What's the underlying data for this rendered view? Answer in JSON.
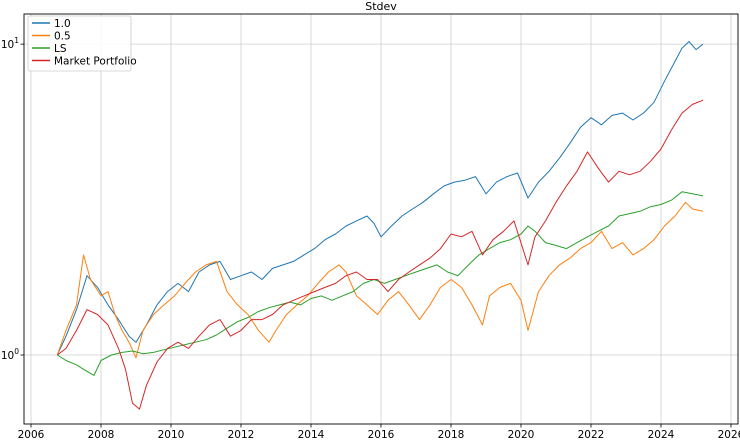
{
  "chart_data": {
    "type": "line",
    "title": "Stdev",
    "xlabel": "",
    "ylabel": "",
    "y_scale": "log",
    "xlim": [
      2005.8,
      2026.2
    ],
    "ylim": [
      0.6,
      12.5
    ],
    "grid": true,
    "legend_position": "top-left",
    "x_ticks": [
      {
        "value": 2006,
        "label": "2006"
      },
      {
        "value": 2008,
        "label": "2008"
      },
      {
        "value": 2010,
        "label": "2010"
      },
      {
        "value": 2012,
        "label": "2012"
      },
      {
        "value": 2014,
        "label": "2014"
      },
      {
        "value": 2016,
        "label": "2016"
      },
      {
        "value": 2018,
        "label": "2018"
      },
      {
        "value": 2020,
        "label": "2020"
      },
      {
        "value": 2022,
        "label": "2022"
      },
      {
        "value": 2024,
        "label": "2024"
      },
      {
        "value": 2026,
        "label": "2026"
      }
    ],
    "y_ticks": [
      {
        "value": 1,
        "base": "10",
        "exp": "0"
      },
      {
        "value": 10,
        "base": "10",
        "exp": "1"
      }
    ],
    "series": [
      {
        "name": "1.0",
        "color": "#1f77b4",
        "points": [
          [
            2006.75,
            1.0
          ],
          [
            2007.0,
            1.15
          ],
          [
            2007.3,
            1.4
          ],
          [
            2007.6,
            1.8
          ],
          [
            2007.9,
            1.65
          ],
          [
            2008.2,
            1.45
          ],
          [
            2008.5,
            1.3
          ],
          [
            2008.8,
            1.15
          ],
          [
            2009.0,
            1.1
          ],
          [
            2009.3,
            1.25
          ],
          [
            2009.6,
            1.45
          ],
          [
            2009.9,
            1.6
          ],
          [
            2010.2,
            1.7
          ],
          [
            2010.5,
            1.6
          ],
          [
            2010.8,
            1.85
          ],
          [
            2011.1,
            1.95
          ],
          [
            2011.4,
            2.0
          ],
          [
            2011.7,
            1.75
          ],
          [
            2012.0,
            1.8
          ],
          [
            2012.3,
            1.85
          ],
          [
            2012.6,
            1.75
          ],
          [
            2012.9,
            1.9
          ],
          [
            2013.2,
            1.95
          ],
          [
            2013.5,
            2.0
          ],
          [
            2013.8,
            2.1
          ],
          [
            2014.1,
            2.2
          ],
          [
            2014.4,
            2.35
          ],
          [
            2014.7,
            2.45
          ],
          [
            2015.0,
            2.6
          ],
          [
            2015.3,
            2.7
          ],
          [
            2015.6,
            2.8
          ],
          [
            2015.8,
            2.65
          ],
          [
            2016.0,
            2.4
          ],
          [
            2016.3,
            2.6
          ],
          [
            2016.6,
            2.8
          ],
          [
            2016.9,
            2.95
          ],
          [
            2017.2,
            3.1
          ],
          [
            2017.5,
            3.3
          ],
          [
            2017.8,
            3.5
          ],
          [
            2018.1,
            3.6
          ],
          [
            2018.4,
            3.65
          ],
          [
            2018.7,
            3.75
          ],
          [
            2019.0,
            3.3
          ],
          [
            2019.3,
            3.6
          ],
          [
            2019.6,
            3.75
          ],
          [
            2019.9,
            3.85
          ],
          [
            2020.2,
            3.2
          ],
          [
            2020.5,
            3.6
          ],
          [
            2020.8,
            3.9
          ],
          [
            2021.1,
            4.3
          ],
          [
            2021.4,
            4.8
          ],
          [
            2021.7,
            5.4
          ],
          [
            2022.0,
            5.8
          ],
          [
            2022.3,
            5.5
          ],
          [
            2022.6,
            5.9
          ],
          [
            2022.9,
            6.0
          ],
          [
            2023.2,
            5.7
          ],
          [
            2023.5,
            6.0
          ],
          [
            2023.8,
            6.5
          ],
          [
            2024.1,
            7.6
          ],
          [
            2024.4,
            8.8
          ],
          [
            2024.6,
            9.7
          ],
          [
            2024.8,
            10.2
          ],
          [
            2025.0,
            9.6
          ],
          [
            2025.2,
            10.0
          ]
        ]
      },
      {
        "name": "0.5",
        "color": "#ff7f0e",
        "points": [
          [
            2006.75,
            1.0
          ],
          [
            2007.0,
            1.2
          ],
          [
            2007.3,
            1.45
          ],
          [
            2007.5,
            2.1
          ],
          [
            2007.7,
            1.75
          ],
          [
            2008.0,
            1.55
          ],
          [
            2008.2,
            1.6
          ],
          [
            2008.4,
            1.35
          ],
          [
            2008.6,
            1.2
          ],
          [
            2008.8,
            1.1
          ],
          [
            2009.0,
            0.98
          ],
          [
            2009.2,
            1.2
          ],
          [
            2009.5,
            1.35
          ],
          [
            2009.8,
            1.45
          ],
          [
            2010.1,
            1.55
          ],
          [
            2010.4,
            1.7
          ],
          [
            2010.7,
            1.85
          ],
          [
            2011.0,
            1.95
          ],
          [
            2011.3,
            2.0
          ],
          [
            2011.6,
            1.6
          ],
          [
            2011.9,
            1.45
          ],
          [
            2012.2,
            1.35
          ],
          [
            2012.5,
            1.2
          ],
          [
            2012.8,
            1.1
          ],
          [
            2013.0,
            1.2
          ],
          [
            2013.3,
            1.35
          ],
          [
            2013.6,
            1.45
          ],
          [
            2013.9,
            1.55
          ],
          [
            2014.2,
            1.7
          ],
          [
            2014.5,
            1.85
          ],
          [
            2014.8,
            1.95
          ],
          [
            2015.0,
            1.85
          ],
          [
            2015.3,
            1.55
          ],
          [
            2015.6,
            1.45
          ],
          [
            2015.9,
            1.35
          ],
          [
            2016.2,
            1.5
          ],
          [
            2016.5,
            1.6
          ],
          [
            2016.8,
            1.45
          ],
          [
            2017.1,
            1.3
          ],
          [
            2017.4,
            1.45
          ],
          [
            2017.7,
            1.65
          ],
          [
            2018.0,
            1.75
          ],
          [
            2018.3,
            1.65
          ],
          [
            2018.6,
            1.45
          ],
          [
            2018.9,
            1.25
          ],
          [
            2019.1,
            1.55
          ],
          [
            2019.4,
            1.65
          ],
          [
            2019.7,
            1.7
          ],
          [
            2020.0,
            1.5
          ],
          [
            2020.2,
            1.2
          ],
          [
            2020.5,
            1.6
          ],
          [
            2020.8,
            1.8
          ],
          [
            2021.1,
            1.95
          ],
          [
            2021.4,
            2.05
          ],
          [
            2021.7,
            2.2
          ],
          [
            2022.0,
            2.3
          ],
          [
            2022.3,
            2.5
          ],
          [
            2022.6,
            2.2
          ],
          [
            2022.9,
            2.3
          ],
          [
            2023.2,
            2.1
          ],
          [
            2023.5,
            2.2
          ],
          [
            2023.8,
            2.35
          ],
          [
            2024.1,
            2.6
          ],
          [
            2024.4,
            2.8
          ],
          [
            2024.7,
            3.1
          ],
          [
            2024.9,
            2.95
          ],
          [
            2025.2,
            2.9
          ]
        ]
      },
      {
        "name": "LS",
        "color": "#2ca02c",
        "points": [
          [
            2006.75,
            1.0
          ],
          [
            2007.0,
            0.96
          ],
          [
            2007.3,
            0.93
          ],
          [
            2007.5,
            0.9
          ],
          [
            2007.8,
            0.86
          ],
          [
            2008.0,
            0.96
          ],
          [
            2008.3,
            1.0
          ],
          [
            2008.6,
            1.02
          ],
          [
            2008.9,
            1.03
          ],
          [
            2009.2,
            1.01
          ],
          [
            2009.5,
            1.02
          ],
          [
            2009.8,
            1.04
          ],
          [
            2010.1,
            1.06
          ],
          [
            2010.4,
            1.08
          ],
          [
            2010.7,
            1.1
          ],
          [
            2011.0,
            1.12
          ],
          [
            2011.3,
            1.16
          ],
          [
            2011.6,
            1.22
          ],
          [
            2011.9,
            1.28
          ],
          [
            2012.2,
            1.32
          ],
          [
            2012.5,
            1.38
          ],
          [
            2012.8,
            1.42
          ],
          [
            2013.1,
            1.45
          ],
          [
            2013.4,
            1.48
          ],
          [
            2013.7,
            1.45
          ],
          [
            2014.0,
            1.52
          ],
          [
            2014.3,
            1.55
          ],
          [
            2014.6,
            1.5
          ],
          [
            2014.9,
            1.55
          ],
          [
            2015.2,
            1.6
          ],
          [
            2015.5,
            1.7
          ],
          [
            2015.8,
            1.75
          ],
          [
            2016.1,
            1.7
          ],
          [
            2016.4,
            1.75
          ],
          [
            2016.7,
            1.8
          ],
          [
            2017.0,
            1.85
          ],
          [
            2017.3,
            1.9
          ],
          [
            2017.6,
            1.95
          ],
          [
            2017.9,
            1.85
          ],
          [
            2018.2,
            1.8
          ],
          [
            2018.5,
            1.95
          ],
          [
            2018.8,
            2.1
          ],
          [
            2019.1,
            2.2
          ],
          [
            2019.4,
            2.3
          ],
          [
            2019.7,
            2.35
          ],
          [
            2020.0,
            2.45
          ],
          [
            2020.2,
            2.6
          ],
          [
            2020.4,
            2.5
          ],
          [
            2020.7,
            2.3
          ],
          [
            2021.0,
            2.25
          ],
          [
            2021.3,
            2.2
          ],
          [
            2021.6,
            2.3
          ],
          [
            2021.9,
            2.4
          ],
          [
            2022.2,
            2.5
          ],
          [
            2022.5,
            2.6
          ],
          [
            2022.8,
            2.8
          ],
          [
            2023.1,
            2.85
          ],
          [
            2023.4,
            2.9
          ],
          [
            2023.7,
            3.0
          ],
          [
            2024.0,
            3.05
          ],
          [
            2024.3,
            3.15
          ],
          [
            2024.6,
            3.35
          ],
          [
            2024.9,
            3.3
          ],
          [
            2025.2,
            3.25
          ]
        ]
      },
      {
        "name": "Market Portfolio",
        "color": "#d62728",
        "points": [
          [
            2006.75,
            1.0
          ],
          [
            2007.0,
            1.05
          ],
          [
            2007.3,
            1.2
          ],
          [
            2007.6,
            1.4
          ],
          [
            2007.9,
            1.35
          ],
          [
            2008.2,
            1.25
          ],
          [
            2008.5,
            1.05
          ],
          [
            2008.7,
            0.9
          ],
          [
            2008.9,
            0.7
          ],
          [
            2009.1,
            0.67
          ],
          [
            2009.3,
            0.8
          ],
          [
            2009.6,
            0.95
          ],
          [
            2009.9,
            1.05
          ],
          [
            2010.2,
            1.1
          ],
          [
            2010.5,
            1.05
          ],
          [
            2010.8,
            1.15
          ],
          [
            2011.1,
            1.25
          ],
          [
            2011.4,
            1.3
          ],
          [
            2011.7,
            1.15
          ],
          [
            2012.0,
            1.2
          ],
          [
            2012.3,
            1.3
          ],
          [
            2012.6,
            1.3
          ],
          [
            2012.9,
            1.35
          ],
          [
            2013.2,
            1.45
          ],
          [
            2013.5,
            1.5
          ],
          [
            2013.8,
            1.55
          ],
          [
            2014.1,
            1.6
          ],
          [
            2014.4,
            1.65
          ],
          [
            2014.7,
            1.7
          ],
          [
            2015.0,
            1.8
          ],
          [
            2015.3,
            1.85
          ],
          [
            2015.6,
            1.75
          ],
          [
            2015.9,
            1.75
          ],
          [
            2016.2,
            1.6
          ],
          [
            2016.5,
            1.75
          ],
          [
            2016.8,
            1.85
          ],
          [
            2017.1,
            1.95
          ],
          [
            2017.4,
            2.05
          ],
          [
            2017.7,
            2.2
          ],
          [
            2018.0,
            2.45
          ],
          [
            2018.3,
            2.4
          ],
          [
            2018.6,
            2.5
          ],
          [
            2018.9,
            2.1
          ],
          [
            2019.2,
            2.35
          ],
          [
            2019.5,
            2.5
          ],
          [
            2019.8,
            2.7
          ],
          [
            2020.2,
            1.95
          ],
          [
            2020.4,
            2.4
          ],
          [
            2020.7,
            2.7
          ],
          [
            2021.0,
            3.1
          ],
          [
            2021.3,
            3.5
          ],
          [
            2021.6,
            3.9
          ],
          [
            2021.9,
            4.5
          ],
          [
            2022.2,
            4.0
          ],
          [
            2022.5,
            3.6
          ],
          [
            2022.8,
            3.9
          ],
          [
            2023.1,
            3.8
          ],
          [
            2023.4,
            3.9
          ],
          [
            2023.7,
            4.2
          ],
          [
            2024.0,
            4.6
          ],
          [
            2024.3,
            5.3
          ],
          [
            2024.6,
            6.0
          ],
          [
            2024.9,
            6.4
          ],
          [
            2025.2,
            6.6
          ]
        ]
      }
    ]
  }
}
